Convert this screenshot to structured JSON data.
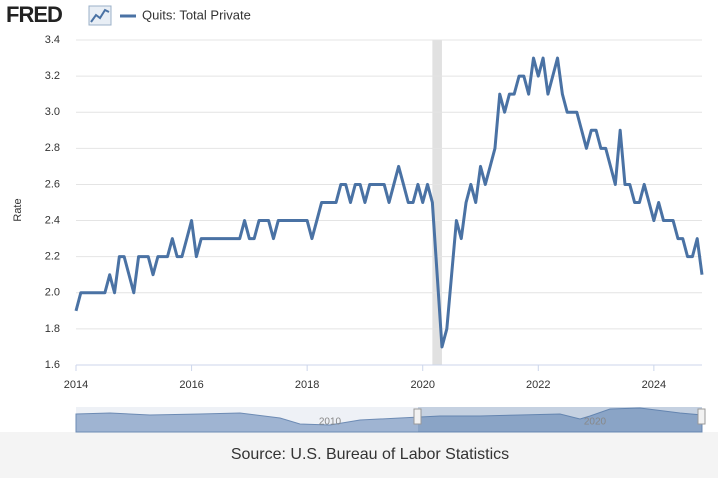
{
  "chart_data": {
    "type": "line",
    "logo": "FRED",
    "y_label": "Rate",
    "source": "Source: U.S. Bureau of Labor Statistics",
    "navigator_labels": [
      "2010",
      "2020"
    ],
    "recession": [
      2020.167,
      2020.333
    ],
    "x": [
      2014,
      2014.083,
      2014.167,
      2014.25,
      2014.333,
      2014.417,
      2014.5,
      2014.583,
      2014.667,
      2014.75,
      2014.833,
      2014.917,
      2015,
      2015.083,
      2015.167,
      2015.25,
      2015.333,
      2015.417,
      2015.5,
      2015.583,
      2015.667,
      2015.75,
      2015.833,
      2015.917,
      2016,
      2016.083,
      2016.167,
      2016.25,
      2016.333,
      2016.417,
      2016.5,
      2016.583,
      2016.667,
      2016.75,
      2016.833,
      2016.917,
      2017,
      2017.083,
      2017.167,
      2017.25,
      2017.333,
      2017.417,
      2017.5,
      2017.583,
      2017.667,
      2017.75,
      2017.833,
      2017.917,
      2018,
      2018.083,
      2018.167,
      2018.25,
      2018.333,
      2018.417,
      2018.5,
      2018.583,
      2018.667,
      2018.75,
      2018.833,
      2018.917,
      2019,
      2019.083,
      2019.167,
      2019.25,
      2019.333,
      2019.417,
      2019.5,
      2019.583,
      2019.667,
      2019.75,
      2019.833,
      2019.917,
      2020,
      2020.083,
      2020.167,
      2020.25,
      2020.333,
      2020.417,
      2020.5,
      2020.583,
      2020.667,
      2020.75,
      2020.833,
      2020.917,
      2021,
      2021.083,
      2021.167,
      2021.25,
      2021.333,
      2021.417,
      2021.5,
      2021.583,
      2021.667,
      2021.75,
      2021.833,
      2021.917,
      2022,
      2022.083,
      2022.167,
      2022.25,
      2022.333,
      2022.417,
      2022.5,
      2022.583,
      2022.667,
      2022.75,
      2022.833,
      2022.917,
      2023,
      2023.083,
      2023.167,
      2023.25,
      2023.333,
      2023.417,
      2023.5,
      2023.583,
      2023.667,
      2023.75,
      2023.833,
      2023.917,
      2024,
      2024.083,
      2024.167,
      2024.25,
      2024.333,
      2024.417,
      2024.5,
      2024.583,
      2024.667,
      2024.75,
      2024.833
    ],
    "series": [
      {
        "name": "Quits: Total Private",
        "color": "#4a72a4",
        "values": [
          1.9,
          2.0,
          2.0,
          2.0,
          2.0,
          2.0,
          2.0,
          2.1,
          2.0,
          2.2,
          2.2,
          2.1,
          2.0,
          2.2,
          2.2,
          2.2,
          2.1,
          2.2,
          2.2,
          2.2,
          2.3,
          2.2,
          2.2,
          2.3,
          2.4,
          2.2,
          2.3,
          2.3,
          2.3,
          2.3,
          2.3,
          2.3,
          2.3,
          2.3,
          2.3,
          2.4,
          2.3,
          2.3,
          2.4,
          2.4,
          2.4,
          2.3,
          2.4,
          2.4,
          2.4,
          2.4,
          2.4,
          2.4,
          2.4,
          2.3,
          2.4,
          2.5,
          2.5,
          2.5,
          2.5,
          2.6,
          2.6,
          2.5,
          2.6,
          2.6,
          2.5,
          2.6,
          2.6,
          2.6,
          2.6,
          2.5,
          2.6,
          2.7,
          2.6,
          2.5,
          2.5,
          2.6,
          2.5,
          2.6,
          2.5,
          2.1,
          1.7,
          1.8,
          2.1,
          2.4,
          2.3,
          2.5,
          2.6,
          2.5,
          2.7,
          2.6,
          2.7,
          2.8,
          3.1,
          3.0,
          3.1,
          3.1,
          3.2,
          3.2,
          3.1,
          3.3,
          3.2,
          3.3,
          3.1,
          3.2,
          3.3,
          3.1,
          3.0,
          3.0,
          3.0,
          2.9,
          2.8,
          2.9,
          2.9,
          2.8,
          2.8,
          2.7,
          2.6,
          2.9,
          2.6,
          2.6,
          2.5,
          2.5,
          2.6,
          2.5,
          2.4,
          2.5,
          2.4,
          2.4,
          2.4,
          2.3,
          2.3,
          2.2,
          2.2,
          2.3,
          2.1
        ]
      }
    ],
    "xlim": [
      2014,
      2024.833
    ],
    "xticks": [
      2014,
      2016,
      2018,
      2020,
      2022,
      2024
    ],
    "ylim": [
      1.6,
      3.4
    ],
    "yticks": [
      1.6,
      1.8,
      {
        "value": 2,
        "label": "2.0"
      },
      2.2,
      2.4,
      2.6,
      2.8,
      {
        "value": 3,
        "label": "3.0"
      },
      3.2,
      3.4
    ],
    "grid": true
  }
}
